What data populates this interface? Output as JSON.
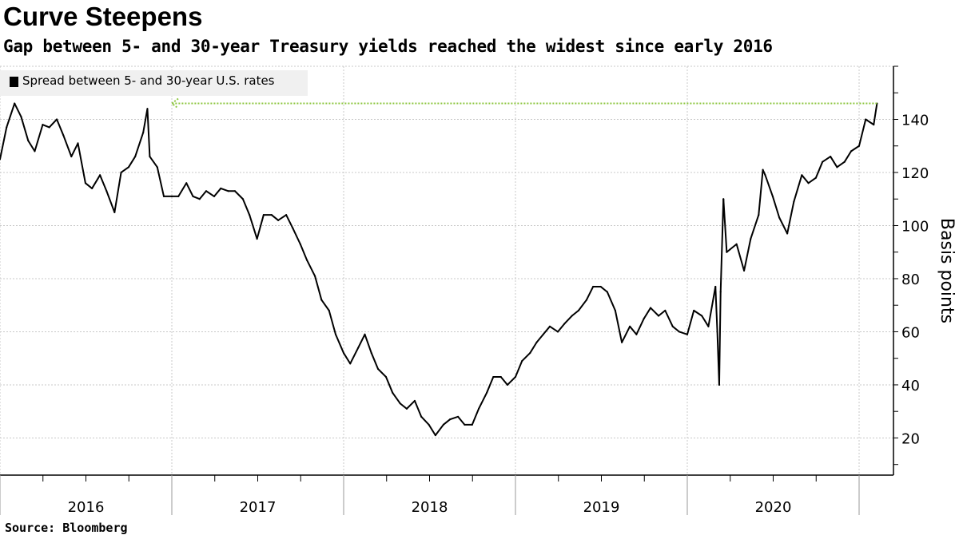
{
  "title": "Curve Steepens",
  "subtitle": "Gap between 5- and 30-year Treasury yields reached the widest since early 2016",
  "source": "Source: Bloomberg",
  "chart_data": {
    "type": "line",
    "title": "Curve Steepens",
    "subtitle": "Gap between 5- and 30-year Treasury yields reached the widest since early 2016",
    "xlabel": "",
    "ylabel": "Basis points",
    "xlim": [
      "2016-01-01",
      "2021-03-15"
    ],
    "ylim": [
      6,
      160
    ],
    "y_ticks": [
      20,
      40,
      60,
      80,
      100,
      120,
      140
    ],
    "x_tick_labels": [
      "2016",
      "2017",
      "2018",
      "2019",
      "2020"
    ],
    "grid": true,
    "legend_position": "top-left",
    "series_color": "#000000",
    "annotation": {
      "type": "dotted-arrow",
      "value": 146,
      "from": "2021-02-08",
      "to": "2017-01-01",
      "color": "#8cc63f"
    },
    "series": [
      {
        "name": "Spread between 5- and 30-year U.S. rates",
        "x": [
          "2016-01-01",
          "2016-01-15",
          "2016-02-01",
          "2016-02-15",
          "2016-03-01",
          "2016-03-15",
          "2016-04-01",
          "2016-04-15",
          "2016-05-01",
          "2016-05-15",
          "2016-06-01",
          "2016-06-15",
          "2016-07-01",
          "2016-07-15",
          "2016-08-01",
          "2016-08-15",
          "2016-09-01",
          "2016-09-15",
          "2016-10-01",
          "2016-10-15",
          "2016-11-01",
          "2016-11-10",
          "2016-11-15",
          "2016-12-01",
          "2016-12-15",
          "2017-01-01",
          "2017-01-15",
          "2017-02-01",
          "2017-02-15",
          "2017-03-01",
          "2017-03-15",
          "2017-04-01",
          "2017-04-15",
          "2017-05-01",
          "2017-05-15",
          "2017-06-01",
          "2017-06-15",
          "2017-07-01",
          "2017-07-15",
          "2017-08-01",
          "2017-08-15",
          "2017-09-01",
          "2017-09-15",
          "2017-10-01",
          "2017-10-15",
          "2017-11-01",
          "2017-11-15",
          "2017-12-01",
          "2017-12-15",
          "2018-01-01",
          "2018-01-15",
          "2018-02-01",
          "2018-02-15",
          "2018-03-01",
          "2018-03-15",
          "2018-04-01",
          "2018-04-15",
          "2018-05-01",
          "2018-05-15",
          "2018-06-01",
          "2018-06-15",
          "2018-07-01",
          "2018-07-15",
          "2018-08-01",
          "2018-08-15",
          "2018-09-01",
          "2018-09-15",
          "2018-10-01",
          "2018-10-15",
          "2018-11-01",
          "2018-11-15",
          "2018-12-01",
          "2018-12-15",
          "2019-01-01",
          "2019-01-15",
          "2019-02-01",
          "2019-02-15",
          "2019-03-01",
          "2019-03-15",
          "2019-04-01",
          "2019-04-15",
          "2019-05-01",
          "2019-05-15",
          "2019-06-01",
          "2019-06-15",
          "2019-07-01",
          "2019-07-15",
          "2019-08-01",
          "2019-08-15",
          "2019-09-01",
          "2019-09-15",
          "2019-10-01",
          "2019-10-15",
          "2019-11-01",
          "2019-11-15",
          "2019-12-01",
          "2019-12-15",
          "2020-01-01",
          "2020-01-15",
          "2020-02-01",
          "2020-02-15",
          "2020-03-01",
          "2020-03-05",
          "2020-03-09",
          "2020-03-12",
          "2020-03-18",
          "2020-03-25",
          "2020-04-01",
          "2020-04-15",
          "2020-05-01",
          "2020-05-15",
          "2020-06-01",
          "2020-06-10",
          "2020-06-15",
          "2020-07-01",
          "2020-07-15",
          "2020-08-01",
          "2020-08-15",
          "2020-09-01",
          "2020-09-15",
          "2020-10-01",
          "2020-10-15",
          "2020-11-01",
          "2020-11-15",
          "2020-12-01",
          "2020-12-15",
          "2021-01-01",
          "2021-01-15",
          "2021-02-01",
          "2021-02-08"
        ],
        "y": [
          125,
          137,
          146,
          141,
          132,
          128,
          138,
          137,
          140,
          134,
          126,
          131,
          116,
          114,
          119,
          113,
          105,
          120,
          122,
          126,
          135,
          144,
          126,
          122,
          111,
          111,
          111,
          116,
          111,
          110,
          113,
          111,
          114,
          113,
          113,
          110,
          104,
          95,
          104,
          104,
          102,
          104,
          99,
          93,
          87,
          81,
          72,
          68,
          59,
          52,
          48,
          54,
          59,
          52,
          46,
          43,
          37,
          33,
          31,
          34,
          28,
          25,
          21,
          25,
          27,
          28,
          25,
          25,
          31,
          37,
          43,
          43,
          40,
          43,
          49,
          52,
          56,
          59,
          62,
          60,
          63,
          66,
          68,
          72,
          77,
          77,
          75,
          68,
          56,
          62,
          59,
          65,
          69,
          66,
          68,
          62,
          60,
          59,
          68,
          66,
          62,
          77,
          60,
          40,
          75,
          110,
          90,
          91,
          93,
          83,
          95,
          104,
          121,
          119,
          111,
          103,
          97,
          109,
          119,
          116,
          118,
          124,
          126,
          122,
          124,
          128,
          130,
          140,
          138,
          146
        ]
      }
    ]
  }
}
